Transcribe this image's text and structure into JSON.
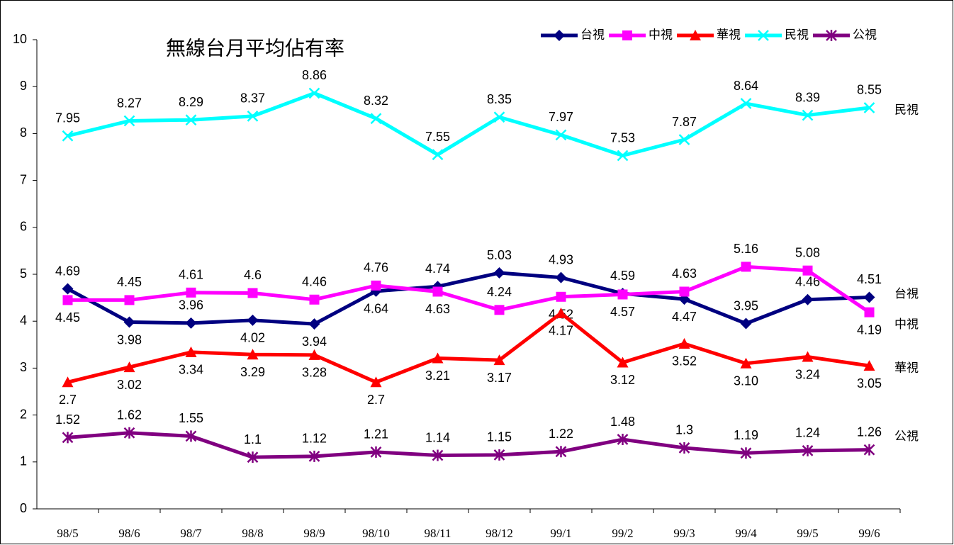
{
  "chart_data": {
    "type": "line",
    "title": "無線台月平均佔有率",
    "categories": [
      "98/5",
      "98/6",
      "98/7",
      "98/8",
      "98/9",
      "98/10",
      "98/11",
      "98/12",
      "99/1",
      "99/2",
      "99/3",
      "99/4",
      "99/5",
      "99/6"
    ],
    "ylim": [
      0,
      10
    ],
    "yticks": [
      0,
      1,
      2,
      3,
      4,
      5,
      6,
      7,
      8,
      9,
      10
    ],
    "legend": "top-right",
    "series": [
      {
        "name": "台視",
        "color": "#000080",
        "marker": "diamond",
        "values": [
          4.69,
          3.98,
          3.96,
          4.02,
          3.94,
          4.64,
          4.74,
          5.03,
          4.93,
          4.59,
          4.47,
          3.95,
          4.46,
          4.51
        ]
      },
      {
        "name": "中視",
        "color": "#ff00ff",
        "marker": "square",
        "values": [
          4.45,
          4.45,
          4.61,
          4.6,
          4.46,
          4.76,
          4.63,
          4.24,
          4.52,
          4.57,
          4.63,
          5.16,
          5.08,
          4.19
        ]
      },
      {
        "name": "華視",
        "color": "#ff0000",
        "marker": "triangle",
        "values": [
          2.7,
          3.02,
          3.34,
          3.29,
          3.28,
          2.7,
          3.21,
          3.17,
          4.17,
          3.12,
          3.52,
          3.1,
          3.24,
          3.05
        ],
        "value_labels": [
          "2.7",
          "3.02",
          "3.34",
          "3.29",
          "3.28",
          "2.7",
          "3.21",
          "3.17",
          "4.17",
          "3.12",
          "3.52",
          "3.10",
          "3.24",
          "3.05"
        ]
      },
      {
        "name": "民視",
        "color": "#00ffff",
        "marker": "x",
        "values": [
          7.95,
          8.27,
          8.29,
          8.37,
          8.86,
          8.32,
          7.55,
          8.35,
          7.97,
          7.53,
          7.87,
          8.64,
          8.39,
          8.55
        ]
      },
      {
        "name": "公視",
        "color": "#800080",
        "marker": "star",
        "values": [
          1.52,
          1.62,
          1.55,
          1.1,
          1.12,
          1.21,
          1.14,
          1.15,
          1.22,
          1.48,
          1.3,
          1.19,
          1.24,
          1.26
        ]
      }
    ]
  }
}
